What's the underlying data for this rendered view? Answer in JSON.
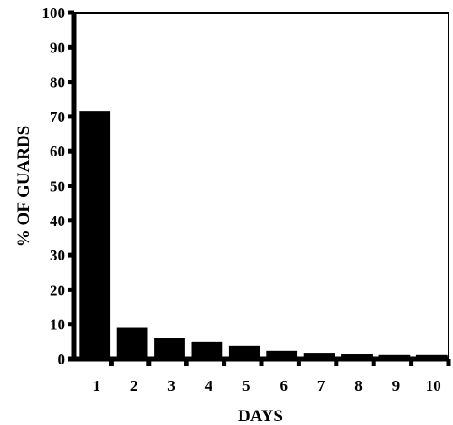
{
  "chart_data": {
    "type": "bar",
    "title": "",
    "xlabel": "DAYS",
    "ylabel": "% OF GUARDS",
    "categories": [
      "1",
      "2",
      "3",
      "4",
      "5",
      "6",
      "7",
      "8",
      "9",
      "10"
    ],
    "values": [
      71.5,
      9,
      6,
      5,
      3.7,
      2.4,
      1.8,
      1.3,
      1.1,
      1.1
    ],
    "ylim": [
      0,
      100
    ],
    "yticks": [
      "0",
      "10",
      "20",
      "30",
      "40",
      "50",
      "60",
      "70",
      "80",
      "90",
      "100"
    ],
    "grid": false,
    "colors": {
      "bar": "#000000",
      "axis": "#000000"
    }
  }
}
